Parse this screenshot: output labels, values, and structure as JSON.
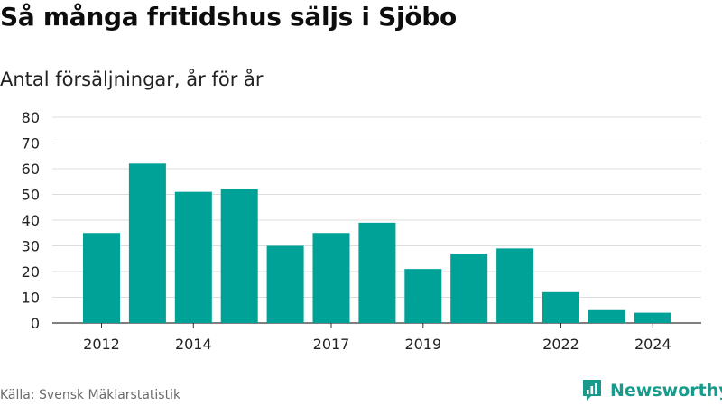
{
  "header": {
    "title": "Så många fritidshus säljs i Sjöbo",
    "subtitle": "Antal försäljningar, år för år"
  },
  "footer": {
    "source": "Källa: Svensk Mäklarstatistik",
    "brand": "Newsworthy",
    "brand_color": "#1a9a8c",
    "brand_icon": "bar-chart-logo-icon"
  },
  "chart_data": {
    "type": "bar",
    "categories": [
      "2012",
      "2013",
      "2014",
      "2015",
      "2016",
      "2017",
      "2018",
      "2019",
      "2020",
      "2021",
      "2022",
      "2023",
      "2024"
    ],
    "values": [
      35,
      62,
      51,
      52,
      30,
      35,
      39,
      21,
      27,
      29,
      12,
      5,
      4
    ],
    "x_tick_labels": [
      "2012",
      "2014",
      "2017",
      "2019",
      "2022",
      "2024"
    ],
    "y_ticks": [
      0,
      10,
      20,
      30,
      40,
      50,
      60,
      70,
      80
    ],
    "ylim": [
      0,
      80
    ],
    "xlabel": "",
    "ylabel": "",
    "bar_color": "#00a196",
    "grid": true,
    "legend": "none"
  }
}
